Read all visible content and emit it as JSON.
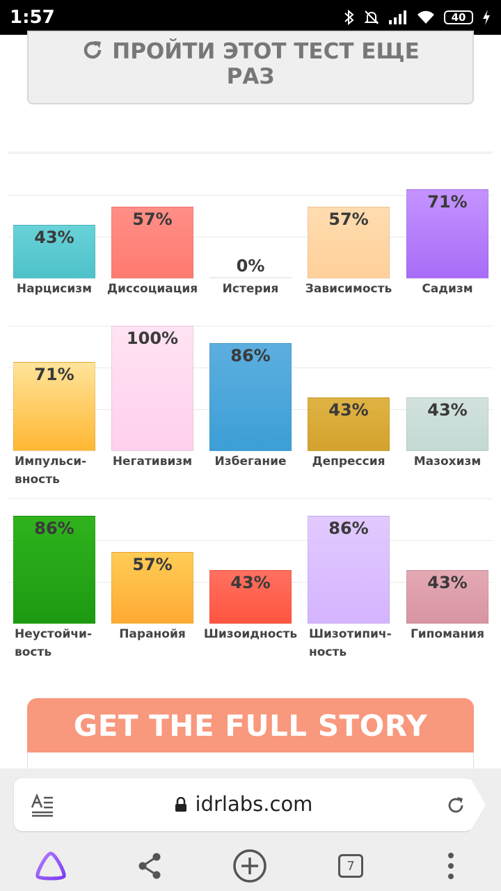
{
  "status_bar": {
    "time": "1:57",
    "battery": "40",
    "icons": [
      "bluetooth-icon",
      "mute-icon",
      "signal-icon",
      "wifi-icon",
      "battery-icon",
      "charging-icon"
    ]
  },
  "retake_button": {
    "label": "ПРОЙТИ ЭТОТ ТЕСТ ЕЩЕ РАЗ",
    "icon": "refresh-icon"
  },
  "chart_data": [
    {
      "type": "bar",
      "categories": [
        "Нарцисизм",
        "Диссоциация",
        "Истерия",
        "Зависимость",
        "Садизм"
      ],
      "values": [
        43,
        57,
        0,
        57,
        71
      ],
      "value_labels": [
        "43%",
        "57%",
        "0%",
        "57%",
        "71%"
      ],
      "colors": [
        [
          "#68d2d8",
          "#4ec2c9"
        ],
        [
          "#ff8f86",
          "#ff7a70"
        ],
        [
          "#a6e28a",
          "#8fd66e"
        ],
        [
          "#ffdcb0",
          "#ffd09a"
        ],
        [
          "#c493ff",
          "#a86cf7"
        ]
      ],
      "ylim": [
        0,
        100
      ]
    },
    {
      "type": "bar",
      "categories": [
        "Импульси-\nвность",
        "Негативизм",
        "Избегание",
        "Депрессия",
        "Мазохизм"
      ],
      "values": [
        71,
        100,
        86,
        43,
        43
      ],
      "value_labels": [
        "71%",
        "100%",
        "86%",
        "43%",
        "43%"
      ],
      "colors": [
        [
          "#ffe49a",
          "#ffb733"
        ],
        [
          "#ffe3f3",
          "#ffd0ec"
        ],
        [
          "#5caedf",
          "#3c9fd6"
        ],
        [
          "#dfb343",
          "#d4a22e"
        ],
        [
          "#d2e2de",
          "#c4d9d4"
        ]
      ],
      "ylim": [
        0,
        100
      ]
    },
    {
      "type": "bar",
      "categories": [
        "Неустойчи-\nвость",
        "Паранойя",
        "Шизоидность",
        "Шизотипич-\nность",
        "Гипомания"
      ],
      "values": [
        86,
        57,
        43,
        86,
        43
      ],
      "value_labels": [
        "86%",
        "57%",
        "43%",
        "86%",
        "43%"
      ],
      "colors": [
        [
          "#2fb31d",
          "#1e9a12"
        ],
        [
          "#ffcc55",
          "#ffaa33"
        ],
        [
          "#ff7060",
          "#ff5540"
        ],
        [
          "#e2caff",
          "#d4b4ff"
        ],
        [
          "#e4a9b4",
          "#d894a2"
        ]
      ],
      "ylim": [
        0,
        100
      ]
    }
  ],
  "story_banner": {
    "label": "GET THE FULL STORY"
  },
  "browser": {
    "domain": "idrlabs.com",
    "tab_count": "7",
    "icons": [
      "reader-mode-icon",
      "lock-icon",
      "reload-icon",
      "alice-assistant-icon",
      "share-icon",
      "new-tab-icon",
      "tabs-icon",
      "more-icon"
    ]
  }
}
